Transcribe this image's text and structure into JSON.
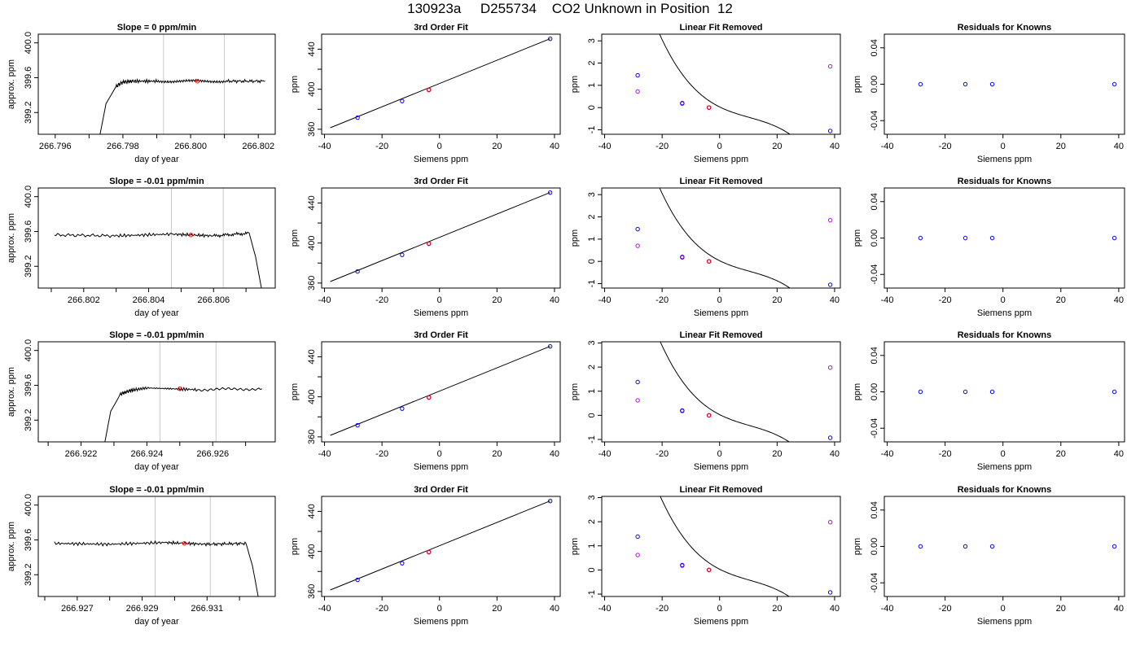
{
  "figure": {
    "title": "130923a     D255734    CO2 Unknown in Position  12",
    "colors": {
      "trace": "#000000",
      "marker_blue": "#0000ff",
      "marker_red": "#ff0000",
      "marker_magenta": "#c000ff",
      "guide": "#c8c8c8",
      "curve": "#000000"
    }
  },
  "chart_data": [
    {
      "type": "line",
      "row": 1,
      "col": 1,
      "title": "Slope =  0  ppm/min",
      "xlabel": "day of year",
      "ylabel": "approx. ppm",
      "xlim": [
        266.7955,
        266.8025
      ],
      "ylim": [
        398.95,
        400.1
      ],
      "xticks": [
        266.796,
        266.798,
        266.8,
        266.802
      ],
      "xtick_labels": [
        "266.796",
        "266.798",
        "266.800",
        "266.802"
      ],
      "yticks": [
        399.2,
        399.6,
        400.0
      ],
      "ytick_labels": [
        "399.2",
        "399.6",
        "400.0"
      ],
      "vlines": [
        266.7992,
        266.801
      ],
      "marker": {
        "x": 266.8002,
        "y": 399.56
      },
      "series": [
        {
          "x": [
            266.7973,
            266.7975,
            266.7978,
            266.798,
            266.7983,
            266.799,
            266.8,
            266.801,
            266.8022
          ],
          "y": [
            398.9,
            399.3,
            399.5,
            399.55,
            399.56,
            399.56,
            399.56,
            399.56,
            399.56
          ]
        }
      ]
    },
    {
      "type": "scatter",
      "row": 1,
      "col": 2,
      "title": "3rd Order Fit",
      "xlabel": "Siemens ppm",
      "ylabel": "ppm",
      "xlim": [
        -41,
        42
      ],
      "ylim": [
        355,
        455
      ],
      "xticks": [
        -40,
        -20,
        0,
        20,
        40
      ],
      "xtick_labels": [
        "-40",
        "-20",
        "0",
        "20",
        "40"
      ],
      "yticks": [
        360,
        400,
        440
      ],
      "ytick_labels": [
        "360",
        "400",
        "440"
      ],
      "fit_line": {
        "x": [
          -38,
          38.5
        ],
        "y": [
          361.5,
          450.5
        ]
      },
      "points_blue": [
        [
          -28.5,
          371.6
        ],
        [
          -13,
          388.2
        ],
        [
          -3.7,
          399.2
        ],
        [
          38.5,
          450.4
        ]
      ],
      "points_red": [
        [
          -3.7,
          399.56
        ]
      ]
    },
    {
      "type": "scatter",
      "row": 1,
      "col": 3,
      "title": "Linear Fit Removed",
      "xlabel": "Siemens ppm",
      "ylabel": "ppm",
      "xlim": [
        -41,
        42
      ],
      "ylim": [
        -1.2,
        3.3
      ],
      "xticks": [
        -40,
        -20,
        0,
        20,
        40
      ],
      "xtick_labels": [
        "-40",
        "-20",
        "0",
        "20",
        "40"
      ],
      "yticks": [
        -1,
        0,
        1,
        2,
        3
      ],
      "ytick_labels": [
        "-1",
        "0",
        "1",
        "2",
        "3"
      ],
      "cubic": {
        "a0": 0.03,
        "a1": -0.064,
        "a2": 0.00265,
        "a3": -8.55e-05,
        "xmin": -38,
        "xmax": 38.5
      },
      "points_blue": [
        [
          -28.5,
          1.45
        ],
        [
          -13,
          0.2
        ],
        [
          -3.7,
          0.0
        ],
        [
          38.5,
          -1.05
        ]
      ],
      "points_magenta": [
        [
          -28.5,
          0.72
        ],
        [
          -13,
          0.18
        ],
        [
          -3.7,
          0.0
        ],
        [
          38.5,
          1.85
        ]
      ],
      "points_red": [
        [
          -3.7,
          0.0
        ]
      ]
    },
    {
      "type": "scatter",
      "row": 1,
      "col": 4,
      "title": "Residuals for Knowns",
      "xlabel": "Siemens ppm",
      "ylabel": "ppm",
      "xlim": [
        -41,
        42
      ],
      "ylim": [
        -0.055,
        0.055
      ],
      "xticks": [
        -40,
        -20,
        0,
        20,
        40
      ],
      "xtick_labels": [
        "-40",
        "-20",
        "0",
        "20",
        "40"
      ],
      "yticks": [
        -0.04,
        0.0,
        0.04
      ],
      "ytick_labels": [
        "-0.04",
        "0.00",
        "0.04"
      ],
      "points_blue": [
        [
          -28.5,
          0
        ],
        [
          -13,
          0
        ],
        [
          -3.7,
          0
        ],
        [
          38.5,
          0
        ]
      ]
    },
    {
      "type": "line",
      "row": 2,
      "col": 1,
      "title": "Slope =  -0.01  ppm/min",
      "xlabel": "day of year",
      "ylabel": "approx. ppm",
      "xlim": [
        266.8006,
        266.8079
      ],
      "ylim": [
        398.95,
        400.1
      ],
      "xticks": [
        266.802,
        266.804,
        266.806
      ],
      "xtick_labels": [
        "266.802",
        "266.804",
        "266.806"
      ],
      "yticks": [
        399.2,
        399.6,
        400.0
      ],
      "ytick_labels": [
        "399.2",
        "399.6",
        "400.0"
      ],
      "vlines": [
        266.8047,
        266.8063
      ],
      "marker": {
        "x": 266.8053,
        "y": 399.56
      },
      "series": [
        {
          "x": [
            266.8011,
            266.803,
            266.8047,
            266.806,
            266.8071,
            266.8073,
            266.8075
          ],
          "y": [
            399.56,
            399.55,
            399.57,
            399.55,
            399.58,
            399.3,
            398.9
          ]
        }
      ]
    },
    {
      "type": "scatter",
      "row": 2,
      "col": 2,
      "title": "3rd Order Fit",
      "xlabel": "Siemens ppm",
      "ylabel": "ppm",
      "xlim": [
        -41,
        42
      ],
      "ylim": [
        355,
        455
      ],
      "xticks": [
        -40,
        -20,
        0,
        20,
        40
      ],
      "xtick_labels": [
        "-40",
        "-20",
        "0",
        "20",
        "40"
      ],
      "yticks": [
        360,
        400,
        440
      ],
      "ytick_labels": [
        "360",
        "400",
        "440"
      ],
      "fit_line": {
        "x": [
          -38,
          38.5
        ],
        "y": [
          361.5,
          450.5
        ]
      },
      "points_blue": [
        [
          -28.5,
          371.6
        ],
        [
          -13,
          388.2
        ],
        [
          -3.7,
          399.2
        ],
        [
          38.5,
          450.4
        ]
      ],
      "points_red": [
        [
          -3.7,
          399.56
        ]
      ]
    },
    {
      "type": "scatter",
      "row": 2,
      "col": 3,
      "title": "Linear Fit Removed",
      "xlabel": "Siemens ppm",
      "ylabel": "ppm",
      "xlim": [
        -41,
        42
      ],
      "ylim": [
        -1.2,
        3.3
      ],
      "xticks": [
        -40,
        -20,
        0,
        20,
        40
      ],
      "xtick_labels": [
        "-40",
        "-20",
        "0",
        "20",
        "40"
      ],
      "yticks": [
        -1,
        0,
        1,
        2,
        3
      ],
      "ytick_labels": [
        "-1",
        "0",
        "1",
        "2",
        "3"
      ],
      "cubic": {
        "a0": 0.03,
        "a1": -0.064,
        "a2": 0.00265,
        "a3": -8.55e-05,
        "xmin": -38,
        "xmax": 38.5
      },
      "points_blue": [
        [
          -28.5,
          1.45
        ],
        [
          -13,
          0.2
        ],
        [
          -3.7,
          0.0
        ],
        [
          38.5,
          -1.05
        ]
      ],
      "points_magenta": [
        [
          -28.5,
          0.7
        ],
        [
          -13,
          0.18
        ],
        [
          -3.7,
          0.0
        ],
        [
          38.5,
          1.85
        ]
      ],
      "points_red": [
        [
          -3.7,
          0.0
        ]
      ]
    },
    {
      "type": "scatter",
      "row": 2,
      "col": 4,
      "title": "Residuals for Knowns",
      "xlabel": "Siemens ppm",
      "ylabel": "ppm",
      "xlim": [
        -41,
        42
      ],
      "ylim": [
        -0.055,
        0.055
      ],
      "xticks": [
        -40,
        -20,
        0,
        20,
        40
      ],
      "xtick_labels": [
        "-40",
        "-20",
        "0",
        "20",
        "40"
      ],
      "yticks": [
        -0.04,
        0.0,
        0.04
      ],
      "ytick_labels": [
        "-0.04",
        "0.00",
        "0.04"
      ],
      "points_blue": [
        [
          -28.5,
          0
        ],
        [
          -13,
          0
        ],
        [
          -3.7,
          0
        ],
        [
          38.5,
          0
        ]
      ]
    },
    {
      "type": "line",
      "row": 3,
      "col": 1,
      "title": "Slope =  -0.01  ppm/min",
      "xlabel": "day of year",
      "ylabel": "approx. ppm",
      "xlim": [
        266.9207,
        266.9279
      ],
      "ylim": [
        398.95,
        400.1
      ],
      "xticks": [
        266.922,
        266.924,
        266.926
      ],
      "xtick_labels": [
        "266.922",
        "266.924",
        "266.926"
      ],
      "yticks": [
        399.2,
        399.6,
        400.0
      ],
      "ytick_labels": [
        "399.2",
        "399.6",
        "400.0"
      ],
      "vlines": [
        266.9244,
        266.9261
      ],
      "marker": {
        "x": 266.925,
        "y": 399.56
      },
      "series": [
        {
          "x": [
            266.9227,
            266.9229,
            266.9232,
            266.9235,
            266.924,
            266.9255,
            266.9275
          ],
          "y": [
            398.9,
            399.3,
            399.5,
            399.54,
            399.57,
            399.55,
            399.56
          ]
        }
      ]
    },
    {
      "type": "scatter",
      "row": 3,
      "col": 2,
      "title": "3rd Order Fit",
      "xlabel": "Siemens ppm",
      "ylabel": "ppm",
      "xlim": [
        -41,
        42
      ],
      "ylim": [
        355,
        455
      ],
      "xticks": [
        -40,
        -20,
        0,
        20,
        40
      ],
      "xtick_labels": [
        "-40",
        "-20",
        "0",
        "20",
        "40"
      ],
      "yticks": [
        360,
        400,
        440
      ],
      "ytick_labels": [
        "360",
        "400",
        "440"
      ],
      "fit_line": {
        "x": [
          -38,
          38.5
        ],
        "y": [
          361.5,
          450.5
        ]
      },
      "points_blue": [
        [
          -28.5,
          371.6
        ],
        [
          -13,
          388.2
        ],
        [
          -3.7,
          399.2
        ],
        [
          38.5,
          450.4
        ]
      ],
      "points_red": [
        [
          -3.7,
          399.56
        ]
      ]
    },
    {
      "type": "scatter",
      "row": 3,
      "col": 3,
      "title": "Linear Fit Removed",
      "xlabel": "Siemens ppm",
      "ylabel": "ppm",
      "xlim": [
        -41,
        42
      ],
      "ylim": [
        -1.1,
        3.05
      ],
      "xticks": [
        -40,
        -20,
        0,
        20,
        40
      ],
      "xtick_labels": [
        "-40",
        "-20",
        "0",
        "20",
        "40"
      ],
      "yticks": [
        -1,
        0,
        1,
        2,
        3
      ],
      "ytick_labels": [
        "-1",
        "0",
        "1",
        "2",
        "3"
      ],
      "cubic": {
        "a0": 0.03,
        "a1": -0.061,
        "a2": 0.0025,
        "a3": -7.9e-05,
        "xmin": -38,
        "xmax": 38.5
      },
      "points_blue": [
        [
          -28.5,
          1.38
        ],
        [
          -13,
          0.2
        ],
        [
          -3.7,
          0.0
        ],
        [
          38.5,
          -0.93
        ]
      ],
      "points_magenta": [
        [
          -28.5,
          0.62
        ],
        [
          -13,
          0.18
        ],
        [
          -3.7,
          0.0
        ],
        [
          38.5,
          1.98
        ]
      ],
      "points_red": [
        [
          -3.7,
          0.0
        ]
      ]
    },
    {
      "type": "scatter",
      "row": 3,
      "col": 4,
      "title": "Residuals for Knowns",
      "xlabel": "Siemens ppm",
      "ylabel": "ppm",
      "xlim": [
        -41,
        42
      ],
      "ylim": [
        -0.055,
        0.055
      ],
      "xticks": [
        -40,
        -20,
        0,
        20,
        40
      ],
      "xtick_labels": [
        "-40",
        "-20",
        "0",
        "20",
        "40"
      ],
      "yticks": [
        -0.04,
        0.0,
        0.04
      ],
      "ytick_labels": [
        "-0.04",
        "0.00",
        "0.04"
      ],
      "points_blue": [
        [
          -28.5,
          0
        ],
        [
          -13,
          0
        ],
        [
          -3.7,
          0
        ],
        [
          38.5,
          0
        ]
      ]
    },
    {
      "type": "line",
      "row": 4,
      "col": 1,
      "title": "Slope =  -0.01  ppm/min",
      "xlabel": "day of year",
      "ylabel": "approx. ppm",
      "xlim": [
        266.9258,
        266.9331
      ],
      "ylim": [
        398.95,
        400.1
      ],
      "xticks": [
        266.927,
        266.929,
        266.931
      ],
      "xtick_labels": [
        "266.927",
        "266.929",
        "266.931"
      ],
      "yticks": [
        399.2,
        399.6,
        400.0
      ],
      "ytick_labels": [
        "399.2",
        "399.6",
        "400.0"
      ],
      "vlines": [
        266.9294,
        266.9311
      ],
      "marker": {
        "x": 266.9303,
        "y": 399.56
      },
      "series": [
        {
          "x": [
            266.9263,
            266.928,
            266.9297,
            266.931,
            266.9322,
            266.9324,
            266.9326
          ],
          "y": [
            399.56,
            399.55,
            399.57,
            399.55,
            399.56,
            399.3,
            398.9
          ]
        }
      ]
    },
    {
      "type": "scatter",
      "row": 4,
      "col": 2,
      "title": "3rd Order Fit",
      "xlabel": "Siemens ppm",
      "ylabel": "ppm",
      "xlim": [
        -41,
        42
      ],
      "ylim": [
        355,
        455
      ],
      "xticks": [
        -40,
        -20,
        0,
        20,
        40
      ],
      "xtick_labels": [
        "-40",
        "-20",
        "0",
        "20",
        "40"
      ],
      "yticks": [
        360,
        400,
        440
      ],
      "ytick_labels": [
        "360",
        "400",
        "440"
      ],
      "fit_line": {
        "x": [
          -38,
          38.5
        ],
        "y": [
          361.5,
          450.5
        ]
      },
      "points_blue": [
        [
          -28.5,
          371.6
        ],
        [
          -13,
          388.2
        ],
        [
          -3.7,
          399.2
        ],
        [
          38.5,
          450.4
        ]
      ],
      "points_red": [
        [
          -3.7,
          399.56
        ]
      ]
    },
    {
      "type": "scatter",
      "row": 4,
      "col": 3,
      "title": "Linear Fit Removed",
      "xlabel": "Siemens ppm",
      "ylabel": "ppm",
      "xlim": [
        -41,
        42
      ],
      "ylim": [
        -1.1,
        3.05
      ],
      "xticks": [
        -40,
        -20,
        0,
        20,
        40
      ],
      "xtick_labels": [
        "-40",
        "-20",
        "0",
        "20",
        "40"
      ],
      "yticks": [
        -1,
        0,
        1,
        2,
        3
      ],
      "ytick_labels": [
        "-1",
        "0",
        "1",
        "2",
        "3"
      ],
      "cubic": {
        "a0": 0.03,
        "a1": -0.061,
        "a2": 0.0025,
        "a3": -7.9e-05,
        "xmin": -38,
        "xmax": 38.5
      },
      "points_blue": [
        [
          -28.5,
          1.38
        ],
        [
          -13,
          0.2
        ],
        [
          -3.7,
          0.0
        ],
        [
          38.5,
          -0.93
        ]
      ],
      "points_magenta": [
        [
          -28.5,
          0.62
        ],
        [
          -13,
          0.18
        ],
        [
          -3.7,
          0.0
        ],
        [
          38.5,
          1.98
        ]
      ],
      "points_red": [
        [
          -3.7,
          0.0
        ]
      ]
    },
    {
      "type": "scatter",
      "row": 4,
      "col": 4,
      "title": "Residuals for Knowns",
      "xlabel": "Siemens ppm",
      "ylabel": "ppm",
      "xlim": [
        -41,
        42
      ],
      "ylim": [
        -0.055,
        0.055
      ],
      "xticks": [
        -40,
        -20,
        0,
        20,
        40
      ],
      "xtick_labels": [
        "-40",
        "-20",
        "0",
        "20",
        "40"
      ],
      "yticks": [
        -0.04,
        0.0,
        0.04
      ],
      "ytick_labels": [
        "-0.04",
        "0.00",
        "0.04"
      ],
      "points_blue": [
        [
          -28.5,
          0
        ],
        [
          -13,
          0
        ],
        [
          -3.7,
          0
        ],
        [
          38.5,
          0
        ]
      ]
    }
  ]
}
